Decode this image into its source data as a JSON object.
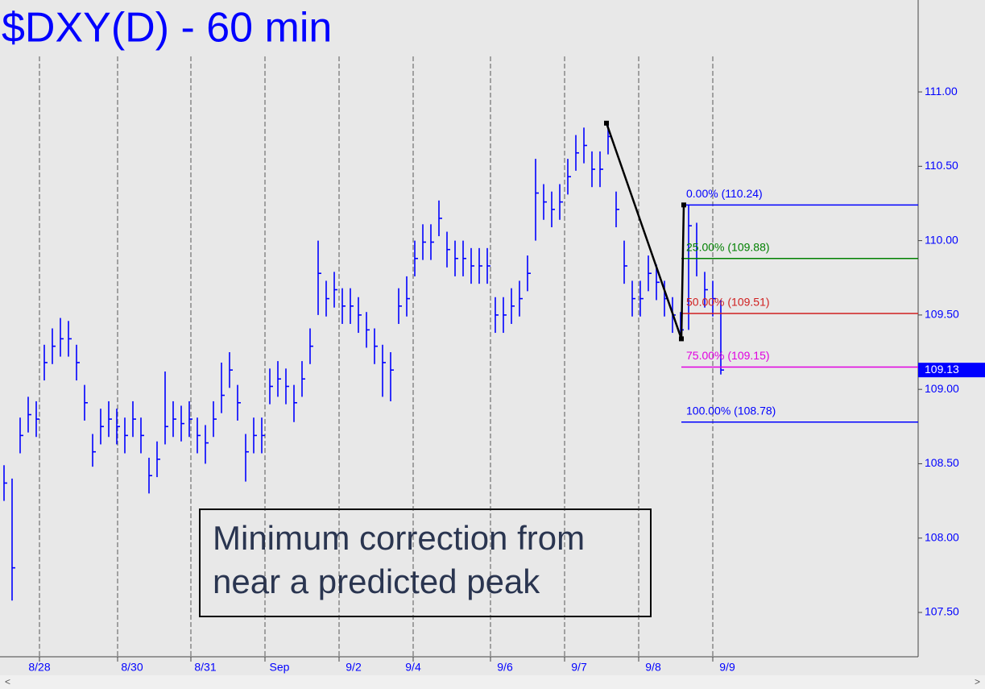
{
  "chart_data": {
    "type": "hlc",
    "title": "$DXY(D) - 60 min",
    "annotation": [
      "Minimum correction from",
      "near a predicted peak"
    ],
    "color": "#0000ff",
    "xlim": [
      -0.5,
      113.5
    ],
    "ylim": [
      107.202,
      111.618
    ],
    "xticks": [
      {
        "value": 4.4,
        "label": "8/28"
      },
      {
        "value": 14.1,
        "label": "8/30"
      },
      {
        "value": 23.2,
        "label": "8/31"
      },
      {
        "value": 32.4,
        "label": "Sep"
      },
      {
        "value": 41.6,
        "label": "9/2"
      },
      {
        "value": 50.8,
        "label": "9/4"
      },
      {
        "value": 60.4,
        "label": "9/6"
      },
      {
        "value": 69.6,
        "label": "9/7"
      },
      {
        "value": 78.8,
        "label": "9/8"
      },
      {
        "value": 88.0,
        "label": "9/9"
      }
    ],
    "yticks": [
      {
        "value": 107.5,
        "label": "107.50"
      },
      {
        "value": 108,
        "label": "108.00"
      },
      {
        "value": 108.5,
        "label": "108.50"
      },
      {
        "value": 109,
        "label": "109.00"
      },
      {
        "value": 109.5,
        "label": "109.50"
      },
      {
        "value": 110,
        "label": "110.00"
      },
      {
        "value": 110.5,
        "label": "110.50"
      },
      {
        "value": 111,
        "label": "111.00"
      }
    ],
    "x": [
      0,
      1,
      2,
      3,
      4,
      5,
      6,
      7,
      8,
      9,
      10,
      11,
      12,
      13,
      14,
      15,
      16,
      17,
      18,
      19,
      20,
      21,
      22,
      23,
      24,
      25,
      26,
      27,
      28,
      29,
      30,
      31,
      32,
      33,
      34,
      35,
      36,
      37,
      38,
      39,
      40,
      41,
      42,
      43,
      44,
      45,
      46,
      47,
      48,
      49,
      50,
      51,
      52,
      53,
      54,
      55,
      56,
      57,
      58,
      59,
      60,
      61,
      62,
      63,
      64,
      65,
      66,
      67,
      68,
      69,
      70,
      71,
      72,
      73,
      74,
      75,
      76,
      77,
      78,
      79,
      80,
      81,
      82,
      83,
      84,
      85,
      86,
      87,
      88,
      89
    ],
    "high": [
      108.49,
      108.4,
      108.81,
      108.95,
      108.92,
      109.3,
      109.41,
      109.48,
      109.46,
      109.3,
      109.03,
      108.7,
      108.87,
      108.92,
      108.87,
      108.81,
      108.92,
      108.81,
      108.54,
      108.65,
      109.12,
      108.92,
      108.89,
      108.92,
      108.81,
      108.76,
      108.92,
      109.18,
      109.25,
      109.03,
      108.7,
      108.81,
      108.81,
      109.14,
      109.19,
      109.14,
      109.03,
      109.19,
      109.41,
      110.0,
      109.73,
      109.79,
      109.68,
      109.68,
      109.62,
      109.52,
      109.41,
      109.3,
      109.25,
      109.68,
      109.76,
      110.0,
      110.11,
      110.11,
      110.27,
      110.06,
      110.0,
      110.0,
      109.95,
      109.95,
      109.95,
      109.62,
      109.62,
      109.68,
      109.73,
      109.9,
      110.55,
      110.38,
      110.33,
      110.38,
      110.55,
      110.71,
      110.76,
      110.6,
      110.6,
      110.8,
      110.33,
      110.0,
      109.73,
      109.73,
      109.9,
      109.84,
      109.73,
      109.62,
      109.52,
      110.24,
      110.12,
      109.79,
      109.73,
      109.6
    ],
    "low": [
      108.25,
      107.58,
      108.57,
      108.71,
      108.68,
      109.06,
      109.17,
      109.22,
      109.22,
      109.06,
      108.79,
      108.48,
      108.63,
      108.68,
      108.63,
      108.57,
      108.68,
      108.57,
      108.3,
      108.41,
      108.63,
      108.68,
      108.65,
      108.68,
      108.57,
      108.5,
      108.68,
      108.84,
      109.01,
      108.79,
      108.38,
      108.57,
      108.57,
      108.9,
      108.95,
      108.9,
      108.78,
      108.95,
      109.17,
      109.5,
      109.49,
      109.55,
      109.44,
      109.44,
      109.38,
      109.28,
      109.17,
      108.95,
      108.92,
      109.44,
      109.49,
      109.76,
      109.87,
      109.87,
      110.03,
      109.82,
      109.76,
      109.76,
      109.71,
      109.71,
      109.71,
      109.38,
      109.38,
      109.44,
      109.49,
      109.66,
      110.0,
      110.14,
      110.09,
      110.14,
      110.31,
      110.47,
      110.52,
      110.36,
      110.36,
      110.58,
      110.09,
      109.71,
      109.49,
      109.49,
      109.66,
      109.6,
      109.49,
      109.38,
      109.33,
      109.4,
      109.76,
      109.55,
      109.49,
      109.1
    ],
    "close": [
      108.37,
      107.8,
      108.69,
      108.83,
      108.8,
      109.18,
      109.29,
      109.34,
      109.34,
      109.18,
      108.91,
      108.58,
      108.75,
      108.8,
      108.75,
      108.69,
      108.8,
      108.69,
      108.42,
      108.53,
      108.75,
      108.8,
      108.77,
      108.8,
      108.69,
      108.64,
      108.8,
      108.96,
      109.13,
      108.91,
      108.58,
      108.69,
      108.69,
      109.02,
      109.07,
      109.02,
      108.91,
      109.07,
      109.29,
      109.78,
      109.61,
      109.67,
      109.56,
      109.56,
      109.5,
      109.4,
      109.29,
      109.18,
      109.13,
      109.56,
      109.61,
      109.88,
      109.99,
      109.99,
      110.15,
      109.94,
      109.88,
      109.88,
      109.83,
      109.83,
      109.83,
      109.5,
      109.5,
      109.56,
      109.61,
      109.78,
      110.32,
      110.26,
      110.21,
      110.26,
      110.43,
      110.59,
      110.64,
      110.48,
      110.48,
      110.7,
      110.21,
      109.83,
      109.61,
      109.61,
      109.78,
      109.72,
      109.61,
      109.5,
      109.4,
      110.1,
      109.88,
      109.67,
      109.61,
      109.13
    ],
    "last_value": {
      "value": 109.13,
      "label": "109.13"
    },
    "swing": {
      "x": [
        74.8,
        84.1,
        84.4
      ],
      "values": [
        110.79,
        109.34,
        110.24
      ]
    },
    "fib_levels": [
      {
        "label": "0.00% (110.24)",
        "value": 110.24,
        "color": "#0000ff"
      },
      {
        "label": "25.00% (109.88)",
        "value": 109.88,
        "color": "#008000"
      },
      {
        "label": "50.00% (109.51)",
        "value": 109.51,
        "color": "#d02020"
      },
      {
        "label": "75.00% (109.15)",
        "value": 109.15,
        "color": "#e000e0"
      },
      {
        "label": "100.00% (108.78)",
        "value": 108.78,
        "color": "#0000ff"
      }
    ]
  }
}
